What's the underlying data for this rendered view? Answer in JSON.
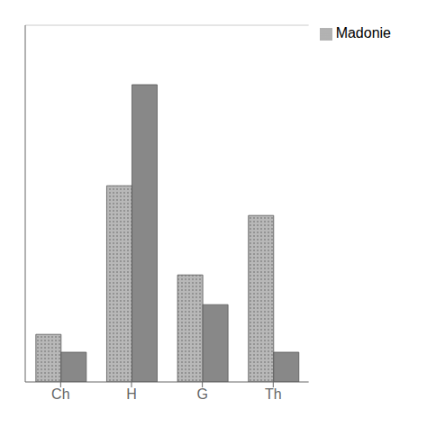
{
  "chart_data": {
    "type": "bar",
    "categories": [
      "Ch",
      "H",
      "G",
      "Th"
    ],
    "series": [
      {
        "name": "Madonie",
        "color": "#b8b8b8",
        "values": [
          8,
          33,
          18,
          28
        ]
      },
      {
        "color": "#888888",
        "values": [
          5,
          50,
          13,
          5
        ]
      }
    ],
    "ylim": [
      0,
      60
    ],
    "yticks": [],
    "grid": false,
    "legend": "upper right",
    "tick_labels": "x"
  }
}
